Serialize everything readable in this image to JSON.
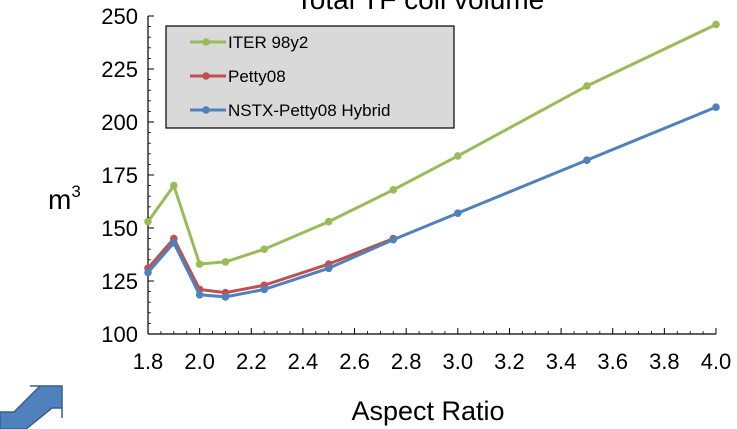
{
  "chart_data": {
    "type": "line",
    "title": "Total TF coil volume",
    "xlabel": "Aspect Ratio",
    "ylabel_base": "m",
    "ylabel_exponent": "3",
    "xlim": [
      1.8,
      4.0
    ],
    "ylim": [
      100,
      250
    ],
    "x_ticks": [
      "1.8",
      "2.0",
      "2.2",
      "2.4",
      "2.6",
      "2.8",
      "3.0",
      "3.2",
      "3.4",
      "3.6",
      "3.8",
      "4.0"
    ],
    "y_ticks": [
      "100",
      "125",
      "150",
      "175",
      "200",
      "225",
      "250"
    ],
    "legend_position": "top-left",
    "grid": false,
    "series": [
      {
        "name": "ITER 98y2",
        "color": "#9bbb59",
        "x": [
          1.8,
          1.9,
          2.0,
          2.1,
          2.25,
          2.5,
          2.75,
          3.0,
          3.5,
          4.0
        ],
        "y": [
          153,
          170,
          133,
          134,
          140,
          153,
          168,
          184,
          217,
          246
        ]
      },
      {
        "name": "Petty08",
        "color": "#c0504d",
        "x": [
          1.8,
          1.9,
          2.0,
          2.1,
          2.25,
          2.5,
          2.75
        ],
        "y": [
          131,
          145,
          121,
          119.5,
          123,
          133,
          145
        ]
      },
      {
        "name": "NSTX-Petty08 Hybrid",
        "color": "#4f81bd",
        "x": [
          1.8,
          1.9,
          2.0,
          2.1,
          2.25,
          2.5,
          2.75,
          3.0,
          3.5,
          4.0
        ],
        "y": [
          129,
          143,
          118.5,
          117.5,
          121,
          131,
          144.5,
          157,
          182,
          207
        ]
      }
    ]
  },
  "decoration": {
    "arrow_icon_name": "arrow-up-right-icon",
    "arrow_color": "#4f81bd"
  }
}
